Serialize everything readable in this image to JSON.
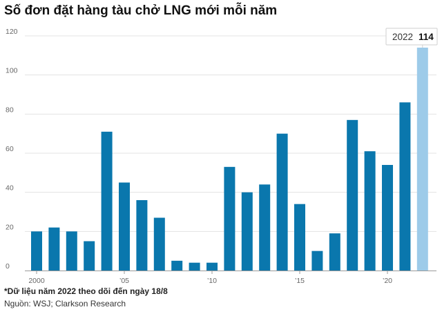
{
  "chart_data": {
    "type": "bar",
    "title": "Số đơn đặt hàng tàu chở LNG mới mỗi năm",
    "categories": [
      2000,
      2001,
      2002,
      2003,
      2004,
      2005,
      2006,
      2007,
      2008,
      2009,
      2010,
      2011,
      2012,
      2013,
      2014,
      2015,
      2016,
      2017,
      2018,
      2019,
      2020,
      2021,
      2022
    ],
    "values": [
      20,
      22,
      20,
      15,
      71,
      45,
      36,
      27,
      5,
      4,
      4,
      53,
      40,
      44,
      70,
      34,
      10,
      19,
      77,
      61,
      54,
      86,
      114
    ],
    "x_tick_labels": [
      {
        "year": 2000,
        "label": "2000"
      },
      {
        "year": 2005,
        "label": "’05"
      },
      {
        "year": 2010,
        "label": "’10"
      },
      {
        "year": 2015,
        "label": "’15"
      },
      {
        "year": 2020,
        "label": "’20"
      }
    ],
    "y_ticks": [
      0,
      20,
      40,
      60,
      80,
      100,
      120
    ],
    "ylim": [
      0,
      120
    ],
    "grid": true,
    "highlight": {
      "year": 2022,
      "label": "2022",
      "value_label": "114"
    },
    "colors": {
      "bar": "#0a77ad",
      "highlight": "#9dcbe9",
      "grid": "#e3e3e3",
      "axis": "#999999"
    }
  },
  "footnote": "*Dữ liệu năm 2022 theo dõi đến ngày 18/8",
  "source": "Nguồn: WSJ; Clarkson Research"
}
